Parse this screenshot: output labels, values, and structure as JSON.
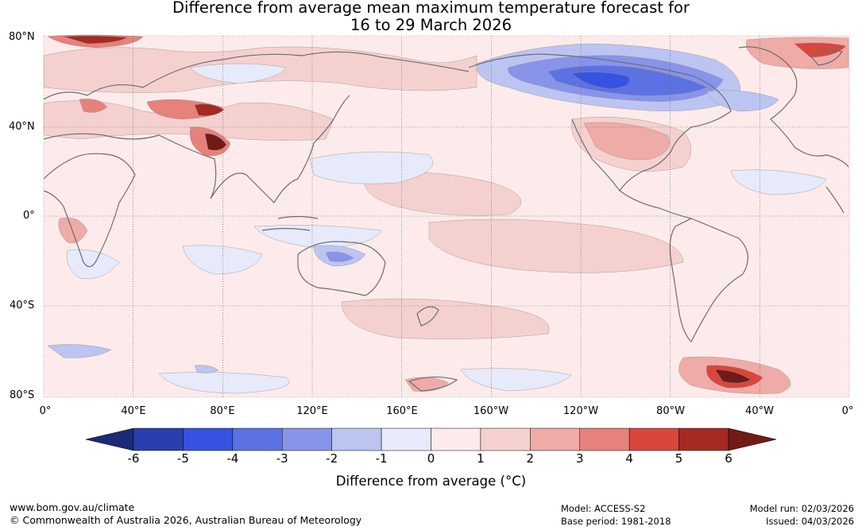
{
  "title": {
    "line1": "Difference from average mean maximum temperature forecast for",
    "line2": "16 to 29 March 2026"
  },
  "map": {
    "lat_labels": [
      "80°N",
      "40°N",
      "0°",
      "40°S",
      "80°S"
    ],
    "lon_labels": [
      "0°",
      "40°E",
      "80°E",
      "120°E",
      "160°E",
      "160°W",
      "120°W",
      "80°W",
      "40°W",
      "0°"
    ]
  },
  "colorbar": {
    "ticks": [
      "-6",
      "-5",
      "-4",
      "-3",
      "-2",
      "-1",
      "0",
      "1",
      "2",
      "3",
      "4",
      "5",
      "6"
    ],
    "label": "Difference from average (°C)",
    "colors": {
      "below_min": "#1c2a78",
      "bins": [
        "#2a3fae",
        "#3552e0",
        "#5c71e2",
        "#8794ea",
        "#bcc4f2",
        "#e6eafb",
        "#fcebea",
        "#f4d1cf",
        "#eeaba7",
        "#e6817b",
        "#d9463c",
        "#a42a22"
      ],
      "above_max": "#701b16"
    }
  },
  "footer": {
    "url": "www.bom.gov.au/climate",
    "copyright": "© Commonwealth of Australia 2026, Australian Bureau of Meteorology",
    "model": "Model: ACCESS-S2",
    "base_period": "Base period: 1981-2018",
    "model_run": "Model run: 02/03/2026",
    "issued": "Issued: 04/03/2026"
  }
}
